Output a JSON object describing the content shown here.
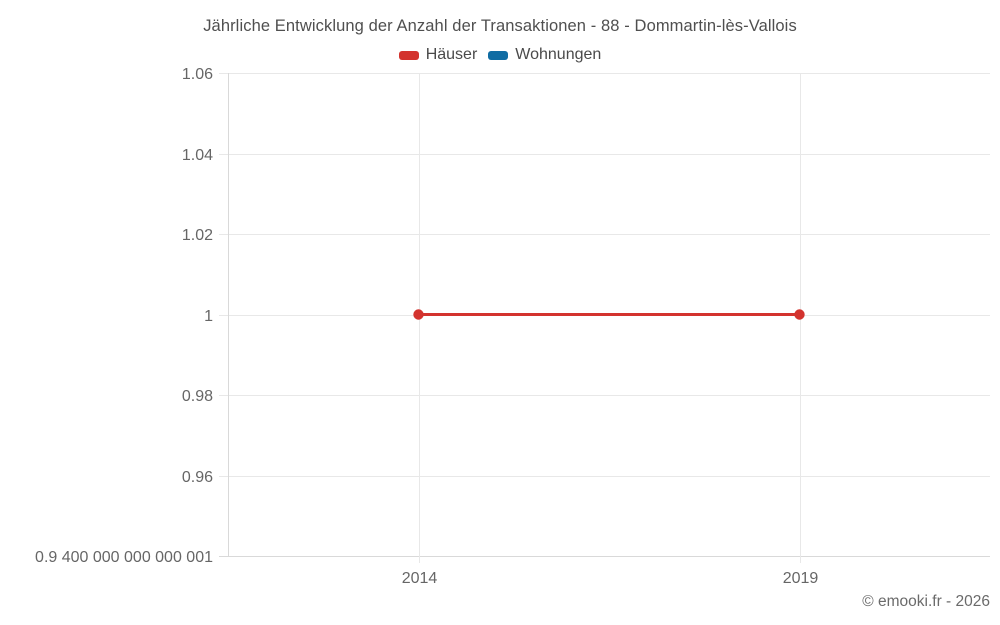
{
  "title": "Jährliche Entwicklung der Anzahl der Transaktionen - 88 - Dommartin-lès-Vallois",
  "legend": [
    {
      "label": "Häuser",
      "color": "#d3332e"
    },
    {
      "label": "Wohnungen",
      "color": "#106ca3"
    }
  ],
  "footer": {
    "copyright": "© emooki.fr - 2026"
  },
  "colors": {
    "gridline": "#e8e8e8",
    "axis_line": "#d9d9d9",
    "tick_text": "#666666"
  },
  "chart_data": {
    "type": "line",
    "title": "Jährliche Entwicklung der Anzahl der Transaktionen - 88 - Dommartin-lès-Vallois",
    "x": [
      "2014",
      "2019"
    ],
    "xtick_labels": [
      "2014",
      "2019"
    ],
    "series": [
      {
        "name": "Häuser",
        "color": "#d3332e",
        "values": [
          1,
          1
        ]
      },
      {
        "name": "Wohnungen",
        "color": "#106ca3",
        "values": []
      }
    ],
    "ylim": [
      0.9400000000000001,
      1.06
    ],
    "yticks": [
      1.06,
      1.04,
      1.02,
      1,
      0.98,
      0.96,
      0.9400000000000001
    ],
    "ytick_labels": [
      "1.06",
      "1.04",
      "1.02",
      "1",
      "0.98",
      "0.96",
      "0.9 400 000 000 000 001"
    ],
    "xlabel": "",
    "ylabel": "",
    "grid": true,
    "legend_position": "top"
  }
}
